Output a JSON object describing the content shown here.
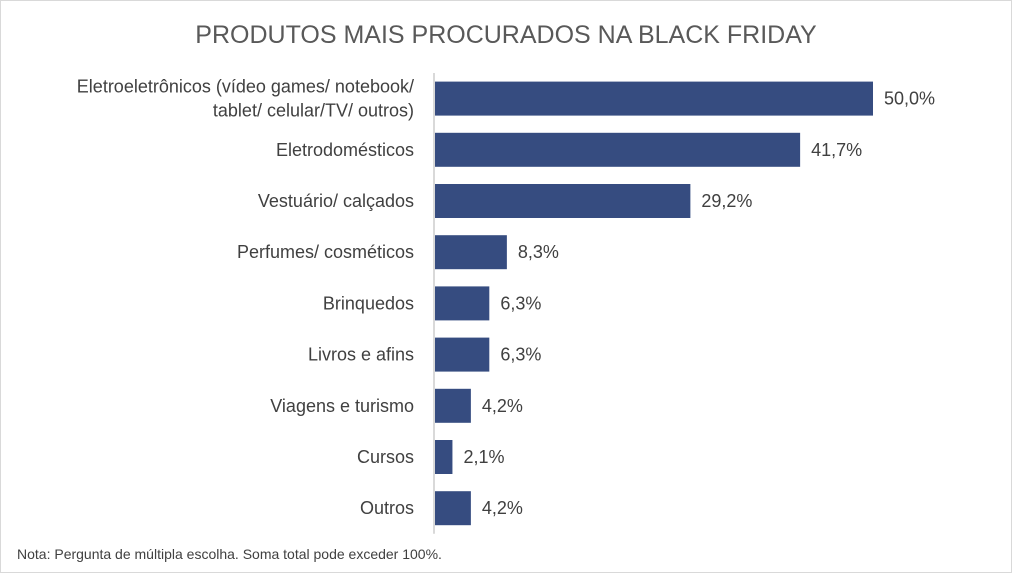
{
  "chart_data": {
    "type": "bar",
    "orientation": "horizontal",
    "title": "PRODUTOS MAIS PROCURADOS NA BLACK FRIDAY",
    "categories": [
      [
        "Eletroeletrônicos (vídeo games/ notebook/",
        "tablet/ celular/TV/ outros)"
      ],
      [
        "Eletrodomésticos"
      ],
      [
        "Vestuário/ calçados"
      ],
      [
        "Perfumes/ cosméticos"
      ],
      [
        "Brinquedos"
      ],
      [
        "Livros e afins"
      ],
      [
        "Viagens e turismo"
      ],
      [
        "Cursos"
      ],
      [
        "Outros"
      ]
    ],
    "values": [
      50.0,
      41.7,
      29.2,
      8.3,
      6.3,
      6.3,
      4.2,
      2.1,
      4.2
    ],
    "labels": [
      "50,0%",
      "41,7%",
      "29,2%",
      "8,3%",
      "6,3%",
      "6,3%",
      "4,2%",
      "2,1%",
      "4,2%"
    ],
    "xlim": [
      0,
      50
    ],
    "grid": false,
    "legend": "none",
    "bar_color": "#364c80",
    "axis_color": "#d9d9d9",
    "note": "Nota: Pergunta de múltipla escolha. Soma total pode exceder 100%."
  }
}
